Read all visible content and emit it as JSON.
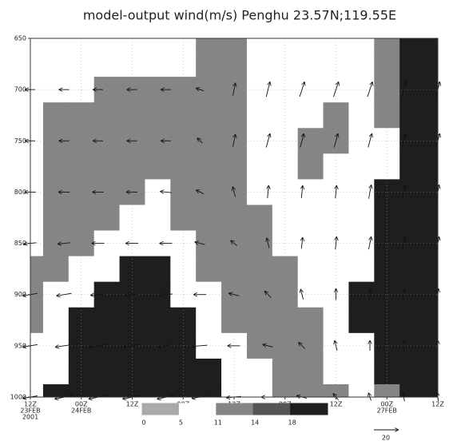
{
  "chart_data": {
    "type": "contour",
    "title": "model-output wind(m/s) Penghu 23.57N;119.55E",
    "xlim": [
      0,
      96
    ],
    "xticks": [
      {
        "value": 0,
        "label": [
          "12Z",
          "23FEB",
          "2001"
        ]
      },
      {
        "value": 12,
        "label": [
          "00Z",
          "24FEB"
        ]
      },
      {
        "value": 24,
        "label": [
          "12Z"
        ]
      },
      {
        "value": 36,
        "label": [
          "00Z",
          "25FEB"
        ]
      },
      {
        "value": 48,
        "label": [
          "12Z"
        ]
      },
      {
        "value": 60,
        "label": [
          "00Z",
          "26FEB"
        ]
      },
      {
        "value": 72,
        "label": [
          "12Z"
        ]
      },
      {
        "value": 84,
        "label": [
          "00Z",
          "27FEB"
        ]
      },
      {
        "value": 96,
        "label": [
          "12Z"
        ]
      }
    ],
    "ylim": [
      1000,
      650
    ],
    "yticks": [
      650,
      700,
      750,
      800,
      850,
      900,
      950,
      1000
    ],
    "grid": true,
    "colorbar": {
      "levels": [
        0,
        5,
        11,
        14,
        18
      ],
      "colors": [
        "#a9a9a9",
        "#ffffff",
        "#858585",
        "#555555",
        "#1e1e1e"
      ]
    },
    "field": {
      "x": [
        0,
        6,
        12,
        18,
        24,
        30,
        36,
        42,
        48,
        54,
        60,
        66,
        72,
        78,
        84,
        90,
        96
      ],
      "levels": [
        650,
        675,
        700,
        725,
        750,
        775,
        800,
        825,
        850,
        875,
        900,
        925,
        950,
        975,
        1000
      ],
      "values": [
        [
          8,
          8,
          8,
          8,
          8,
          8,
          8,
          12,
          12,
          8,
          8,
          8,
          8,
          8,
          12,
          20,
          20
        ],
        [
          8,
          8,
          8,
          8,
          8,
          8,
          8,
          12,
          12,
          8,
          8,
          8,
          8,
          8,
          12,
          20,
          20
        ],
        [
          8,
          8,
          8,
          12,
          12,
          12,
          12,
          12,
          12,
          8,
          8,
          8,
          8,
          8,
          12,
          20,
          20
        ],
        [
          8,
          12,
          12,
          12,
          12,
          12,
          12,
          12,
          12,
          8,
          8,
          8,
          12,
          8,
          12,
          20,
          20
        ],
        [
          8,
          12,
          12,
          12,
          12,
          12,
          12,
          12,
          12,
          8,
          8,
          12,
          12,
          8,
          8,
          20,
          20
        ],
        [
          8,
          12,
          12,
          12,
          12,
          12,
          12,
          12,
          12,
          8,
          8,
          12,
          8,
          8,
          8,
          20,
          20
        ],
        [
          8,
          12,
          12,
          12,
          12,
          8,
          12,
          12,
          12,
          8,
          8,
          8,
          8,
          8,
          20,
          20,
          20
        ],
        [
          8,
          12,
          12,
          12,
          8,
          8,
          12,
          12,
          12,
          12,
          8,
          8,
          8,
          8,
          20,
          20,
          20
        ],
        [
          8,
          12,
          12,
          8,
          8,
          8,
          8,
          12,
          12,
          12,
          8,
          8,
          8,
          8,
          20,
          20,
          20
        ],
        [
          12,
          12,
          8,
          8,
          20,
          20,
          8,
          12,
          12,
          12,
          12,
          8,
          8,
          8,
          20,
          20,
          20
        ],
        [
          12,
          8,
          8,
          20,
          20,
          20,
          8,
          8,
          12,
          12,
          12,
          8,
          8,
          20,
          20,
          20,
          20
        ],
        [
          12,
          8,
          20,
          20,
          20,
          20,
          20,
          8,
          12,
          12,
          12,
          12,
          8,
          20,
          20,
          20,
          20
        ],
        [
          8,
          8,
          20,
          20,
          20,
          20,
          20,
          8,
          8,
          12,
          12,
          12,
          8,
          8,
          20,
          20,
          20
        ],
        [
          8,
          8,
          20,
          20,
          20,
          20,
          20,
          20,
          8,
          8,
          12,
          12,
          8,
          8,
          20,
          20,
          20
        ],
        [
          8,
          20,
          20,
          20,
          20,
          20,
          20,
          20,
          8,
          8,
          12,
          12,
          12,
          8,
          12,
          20,
          20
        ]
      ]
    },
    "arrows": {
      "x": [
        0,
        8,
        16,
        24,
        32,
        40,
        48,
        56,
        64,
        72,
        80,
        88,
        96
      ],
      "levels": [
        700,
        750,
        800,
        850,
        900,
        950,
        1000
      ],
      "u": [
        [
          -8,
          -8,
          -8,
          -8,
          -8,
          -6,
          2,
          3,
          4,
          4,
          4,
          3,
          3
        ],
        [
          -8,
          -8,
          -8,
          -8,
          -8,
          -4,
          2,
          3,
          3,
          3,
          3,
          3,
          3
        ],
        [
          -9,
          -9,
          -9,
          -9,
          -9,
          -6,
          -2,
          1,
          1,
          1,
          2,
          2,
          2
        ],
        [
          -10,
          -10,
          -10,
          -10,
          -10,
          -8,
          -5,
          -2,
          1,
          1,
          2,
          2,
          2
        ],
        [
          -12,
          -12,
          -12,
          -11,
          -11,
          -10,
          -8,
          -5,
          -2,
          0,
          1,
          1,
          1
        ],
        [
          -12,
          -14,
          -14,
          -14,
          -13,
          -12,
          -10,
          -8,
          -5,
          -2,
          0,
          0,
          0
        ],
        [
          -12,
          -15,
          -15,
          -15,
          -14,
          -13,
          -12,
          -10,
          -8,
          -4,
          -2,
          -1,
          -1
        ]
      ],
      "v": [
        [
          0,
          0,
          0,
          0,
          0,
          2,
          10,
          12,
          12,
          12,
          12,
          12,
          12
        ],
        [
          0,
          0,
          0,
          0,
          0,
          4,
          10,
          11,
          11,
          11,
          11,
          11,
          11
        ],
        [
          0,
          0,
          0,
          0,
          1,
          3,
          8,
          10,
          10,
          10,
          11,
          11,
          11
        ],
        [
          -1,
          -1,
          0,
          0,
          0,
          2,
          4,
          8,
          9,
          10,
          10,
          10,
          10
        ],
        [
          -2,
          -2,
          -1,
          -1,
          -1,
          0,
          2,
          5,
          8,
          9,
          9,
          9,
          9
        ],
        [
          -2,
          -2,
          -2,
          -2,
          -2,
          -1,
          0,
          2,
          5,
          8,
          8,
          8,
          8
        ],
        [
          -2,
          -3,
          -3,
          -3,
          -3,
          -2,
          -1,
          0,
          2,
          5,
          6,
          7,
          7
        ]
      ],
      "reference": 20
    }
  }
}
